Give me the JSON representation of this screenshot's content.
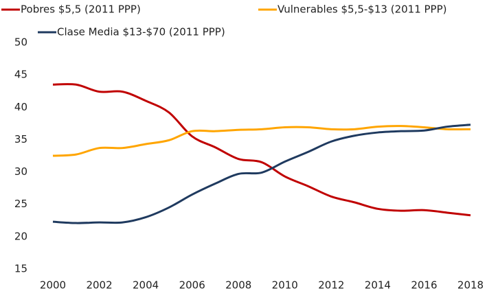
{
  "chart_data": {
    "type": "line",
    "x": [
      2000,
      2001,
      2002,
      2003,
      2004,
      2005,
      2006,
      2007,
      2008,
      2009,
      2010,
      2011,
      2012,
      2013,
      2014,
      2015,
      2016,
      2017,
      2018
    ],
    "series": [
      {
        "name": "Pobres $5,5 (2011 PPP)",
        "color": "#c00000",
        "values": [
          43.5,
          43.5,
          42.4,
          42.4,
          41.0,
          39.2,
          35.5,
          33.8,
          32.0,
          31.5,
          29.3,
          27.8,
          26.2,
          25.3,
          24.3,
          24.0,
          24.1,
          23.7,
          23.3
        ]
      },
      {
        "name": "Vulnerables $5,5-$13 (2011 PPP)",
        "color": "#ffa500",
        "values": [
          32.5,
          32.7,
          33.7,
          33.7,
          34.3,
          34.9,
          36.3,
          36.3,
          36.5,
          36.6,
          36.9,
          36.9,
          36.6,
          36.6,
          37.0,
          37.1,
          36.9,
          36.6,
          36.6
        ]
      },
      {
        "name": "Clase Media $13-$70 (2011 PPP)",
        "color": "#1f3a5f",
        "values": [
          22.3,
          22.1,
          22.2,
          22.2,
          23.0,
          24.5,
          26.5,
          28.2,
          29.7,
          29.9,
          31.6,
          33.1,
          34.7,
          35.6,
          36.1,
          36.3,
          36.4,
          37.0,
          37.3
        ]
      }
    ],
    "xlim": [
      2000,
      2018
    ],
    "xticks": [
      2000,
      2002,
      2004,
      2006,
      2008,
      2010,
      2012,
      2014,
      2016,
      2018
    ],
    "ylim": [
      15,
      50
    ],
    "yticks": [
      15,
      20,
      25,
      30,
      35,
      40,
      45,
      50
    ]
  }
}
